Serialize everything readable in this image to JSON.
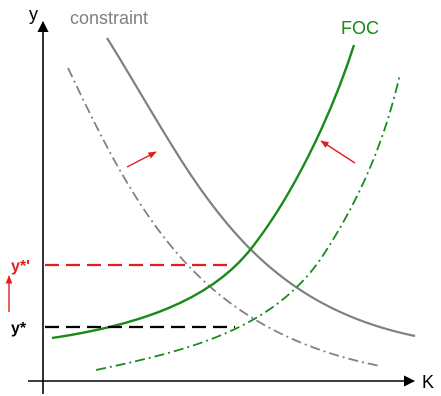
{
  "axes": {
    "y_label": "y",
    "x_label": "K"
  },
  "labels": {
    "constraint": "constraint",
    "foc": "FOC",
    "y_star_prime": "y*'",
    "y_star": "y*"
  },
  "colors": {
    "axis": "#000000",
    "constraint": "#808080",
    "foc": "#1a8a1a",
    "highlight": "#e02020",
    "baseline": "#000000"
  }
}
